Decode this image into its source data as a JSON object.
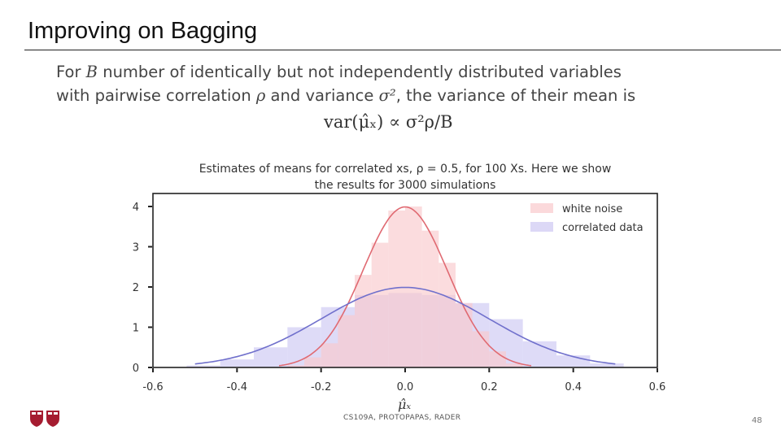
{
  "slide": {
    "title": "Improving on Bagging",
    "body_line1_a": "For ",
    "body_var_B": "B",
    "body_line1_b": " number of identically but not independently distributed variables",
    "body_line2_a": "with pairwise correlation ",
    "body_var_rho": "ρ",
    "body_line2_b": " and variance ",
    "body_var_sigma2": "σ²",
    "body_line2_c": ", the variance of their mean is",
    "formula": "var(μ̂ₓ) ∝ σ²ρ/B"
  },
  "footer": {
    "course": "CS109A, PROTOPAPAS, RADER",
    "page": "48"
  },
  "colors": {
    "white_noise_fill": "#f9c9cc",
    "white_noise_line": "#e06a72",
    "correlated_fill": "#cdc8f2",
    "correlated_line": "#7070cc",
    "crimson": "#a51c30"
  },
  "chart_data": {
    "type": "bar",
    "title_line1": "Estimates of means for correlated  xs, ρ = 0.5, for 100 Xs. Here we show",
    "title_line2": "the results for 3000 simulations",
    "xlabel": "μ̂ₓ",
    "ylabel": "",
    "xlim": [
      -0.6,
      0.6
    ],
    "ylim": [
      0,
      4.3
    ],
    "xticks": [
      -0.6,
      -0.4,
      -0.2,
      0.0,
      0.2,
      0.4,
      0.6
    ],
    "xtick_labels": [
      "-0.6",
      "-0.4",
      "-0.2",
      "0.0",
      "0.2",
      "0.4",
      "0.6"
    ],
    "yticks": [
      0,
      1,
      2,
      3,
      4
    ],
    "ytick_labels": [
      "0",
      "1",
      "2",
      "3",
      "4"
    ],
    "legend_position": "top-right",
    "grid": false,
    "series": [
      {
        "name": "white noise",
        "kind": "histogram",
        "bin_edges": [
          -0.28,
          -0.24,
          -0.2,
          -0.16,
          -0.12,
          -0.08,
          -0.04,
          0.0,
          0.04,
          0.08,
          0.12,
          0.16,
          0.2,
          0.24,
          0.28
        ],
        "values": [
          0.05,
          0.25,
          0.6,
          1.3,
          2.3,
          3.1,
          3.9,
          4.0,
          3.4,
          2.6,
          1.6,
          0.9,
          0.4,
          0.1
        ],
        "curve": {
          "mean": 0.0,
          "std": 0.1,
          "peak": 3.99
        }
      },
      {
        "name": "correlated data",
        "kind": "histogram",
        "bin_edges": [
          -0.6,
          -0.52,
          -0.44,
          -0.36,
          -0.28,
          -0.2,
          -0.12,
          -0.04,
          0.04,
          0.12,
          0.2,
          0.28,
          0.36,
          0.44,
          0.52,
          0.6
        ],
        "values": [
          0.01,
          0.05,
          0.2,
          0.5,
          1.0,
          1.5,
          1.8,
          1.85,
          1.8,
          1.6,
          1.2,
          0.65,
          0.3,
          0.1,
          0.02
        ],
        "curve": {
          "mean": 0.0,
          "std": 0.2,
          "peak": 1.99
        }
      }
    ]
  }
}
